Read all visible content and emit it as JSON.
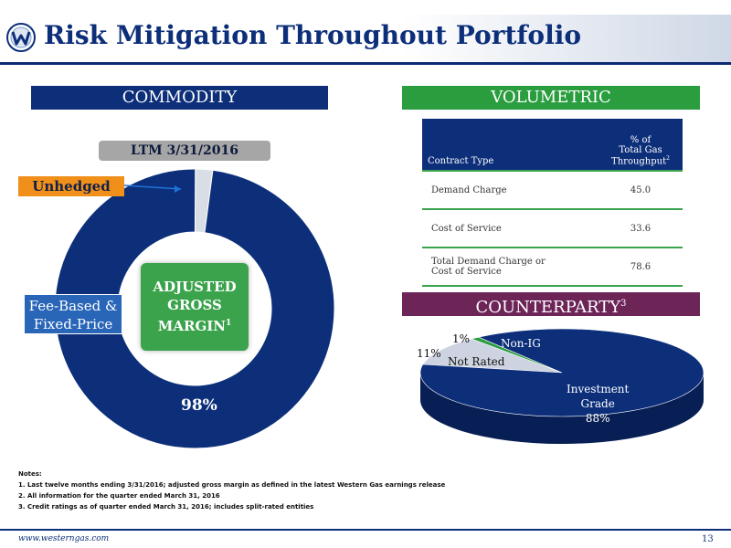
{
  "header": {
    "title": "Risk Mitigation Throughout Portfolio"
  },
  "commodity": {
    "banner": "COMMODITY",
    "period": "LTM 3/31/2016",
    "unhedged_label": "Unhedged",
    "fee_based_label_line1": "Fee-Based &",
    "fee_based_label_line2": "Fixed-Price",
    "fee_based_pct": "98%",
    "center_label_line1": "ADJUSTED",
    "center_label_line2": "GROSS",
    "center_label_line3": "MARGIN",
    "center_label_sup": "1"
  },
  "volumetric": {
    "banner": "VOLUMETRIC",
    "table": {
      "col1": "Contract Type",
      "col2_line1": "% of",
      "col2_line2": "Total Gas",
      "col2_line3": "Throughput",
      "col2_sup": "2",
      "rows": [
        {
          "type": "Demand Charge",
          "pct": "45.0"
        },
        {
          "type": "Cost of Service",
          "pct": "33.6"
        },
        {
          "type_line1": "Total Demand Charge or",
          "type_line2": "Cost of Service",
          "pct": "78.6"
        }
      ]
    }
  },
  "counterparty": {
    "banner": "COUNTERPARTY",
    "banner_sup": "3",
    "labels": {
      "non_ig_pct": "1%",
      "non_ig": "Non-IG",
      "not_rated_pct": "11%",
      "not_rated": "Not Rated",
      "ig_line1": "Investment",
      "ig_line2": "Grade",
      "ig_pct": "88%"
    }
  },
  "notes": {
    "title": "Notes:",
    "items": [
      "1.   Last twelve months ending 3/31/2016; adjusted gross margin as defined in the latest Western Gas earnings release",
      "2.   All information for the quarter ended March 31, 2016",
      "3.   Credit ratings as of quarter ended March 31, 2016;  includes split-rated entities"
    ]
  },
  "footer": {
    "url": "www.westerngas.com",
    "page": "13"
  },
  "colors": {
    "navy": "#0d2f7a",
    "green": "#2a9d3e",
    "purple": "#6d2558",
    "orange": "#f0901a",
    "blue_label": "#2a66b8",
    "gray": "#a6a6a6"
  },
  "chart_data": [
    {
      "type": "pie",
      "variant": "donut",
      "labels": [
        "Fee-Based & Fixed-Price",
        "Unhedged"
      ],
      "values": [
        98,
        2
      ]
    },
    {
      "type": "pie",
      "variant": "3d",
      "labels": [
        "Investment Grade",
        "Not Rated",
        "Non-IG"
      ],
      "values": [
        88,
        11,
        1
      ]
    }
  ]
}
